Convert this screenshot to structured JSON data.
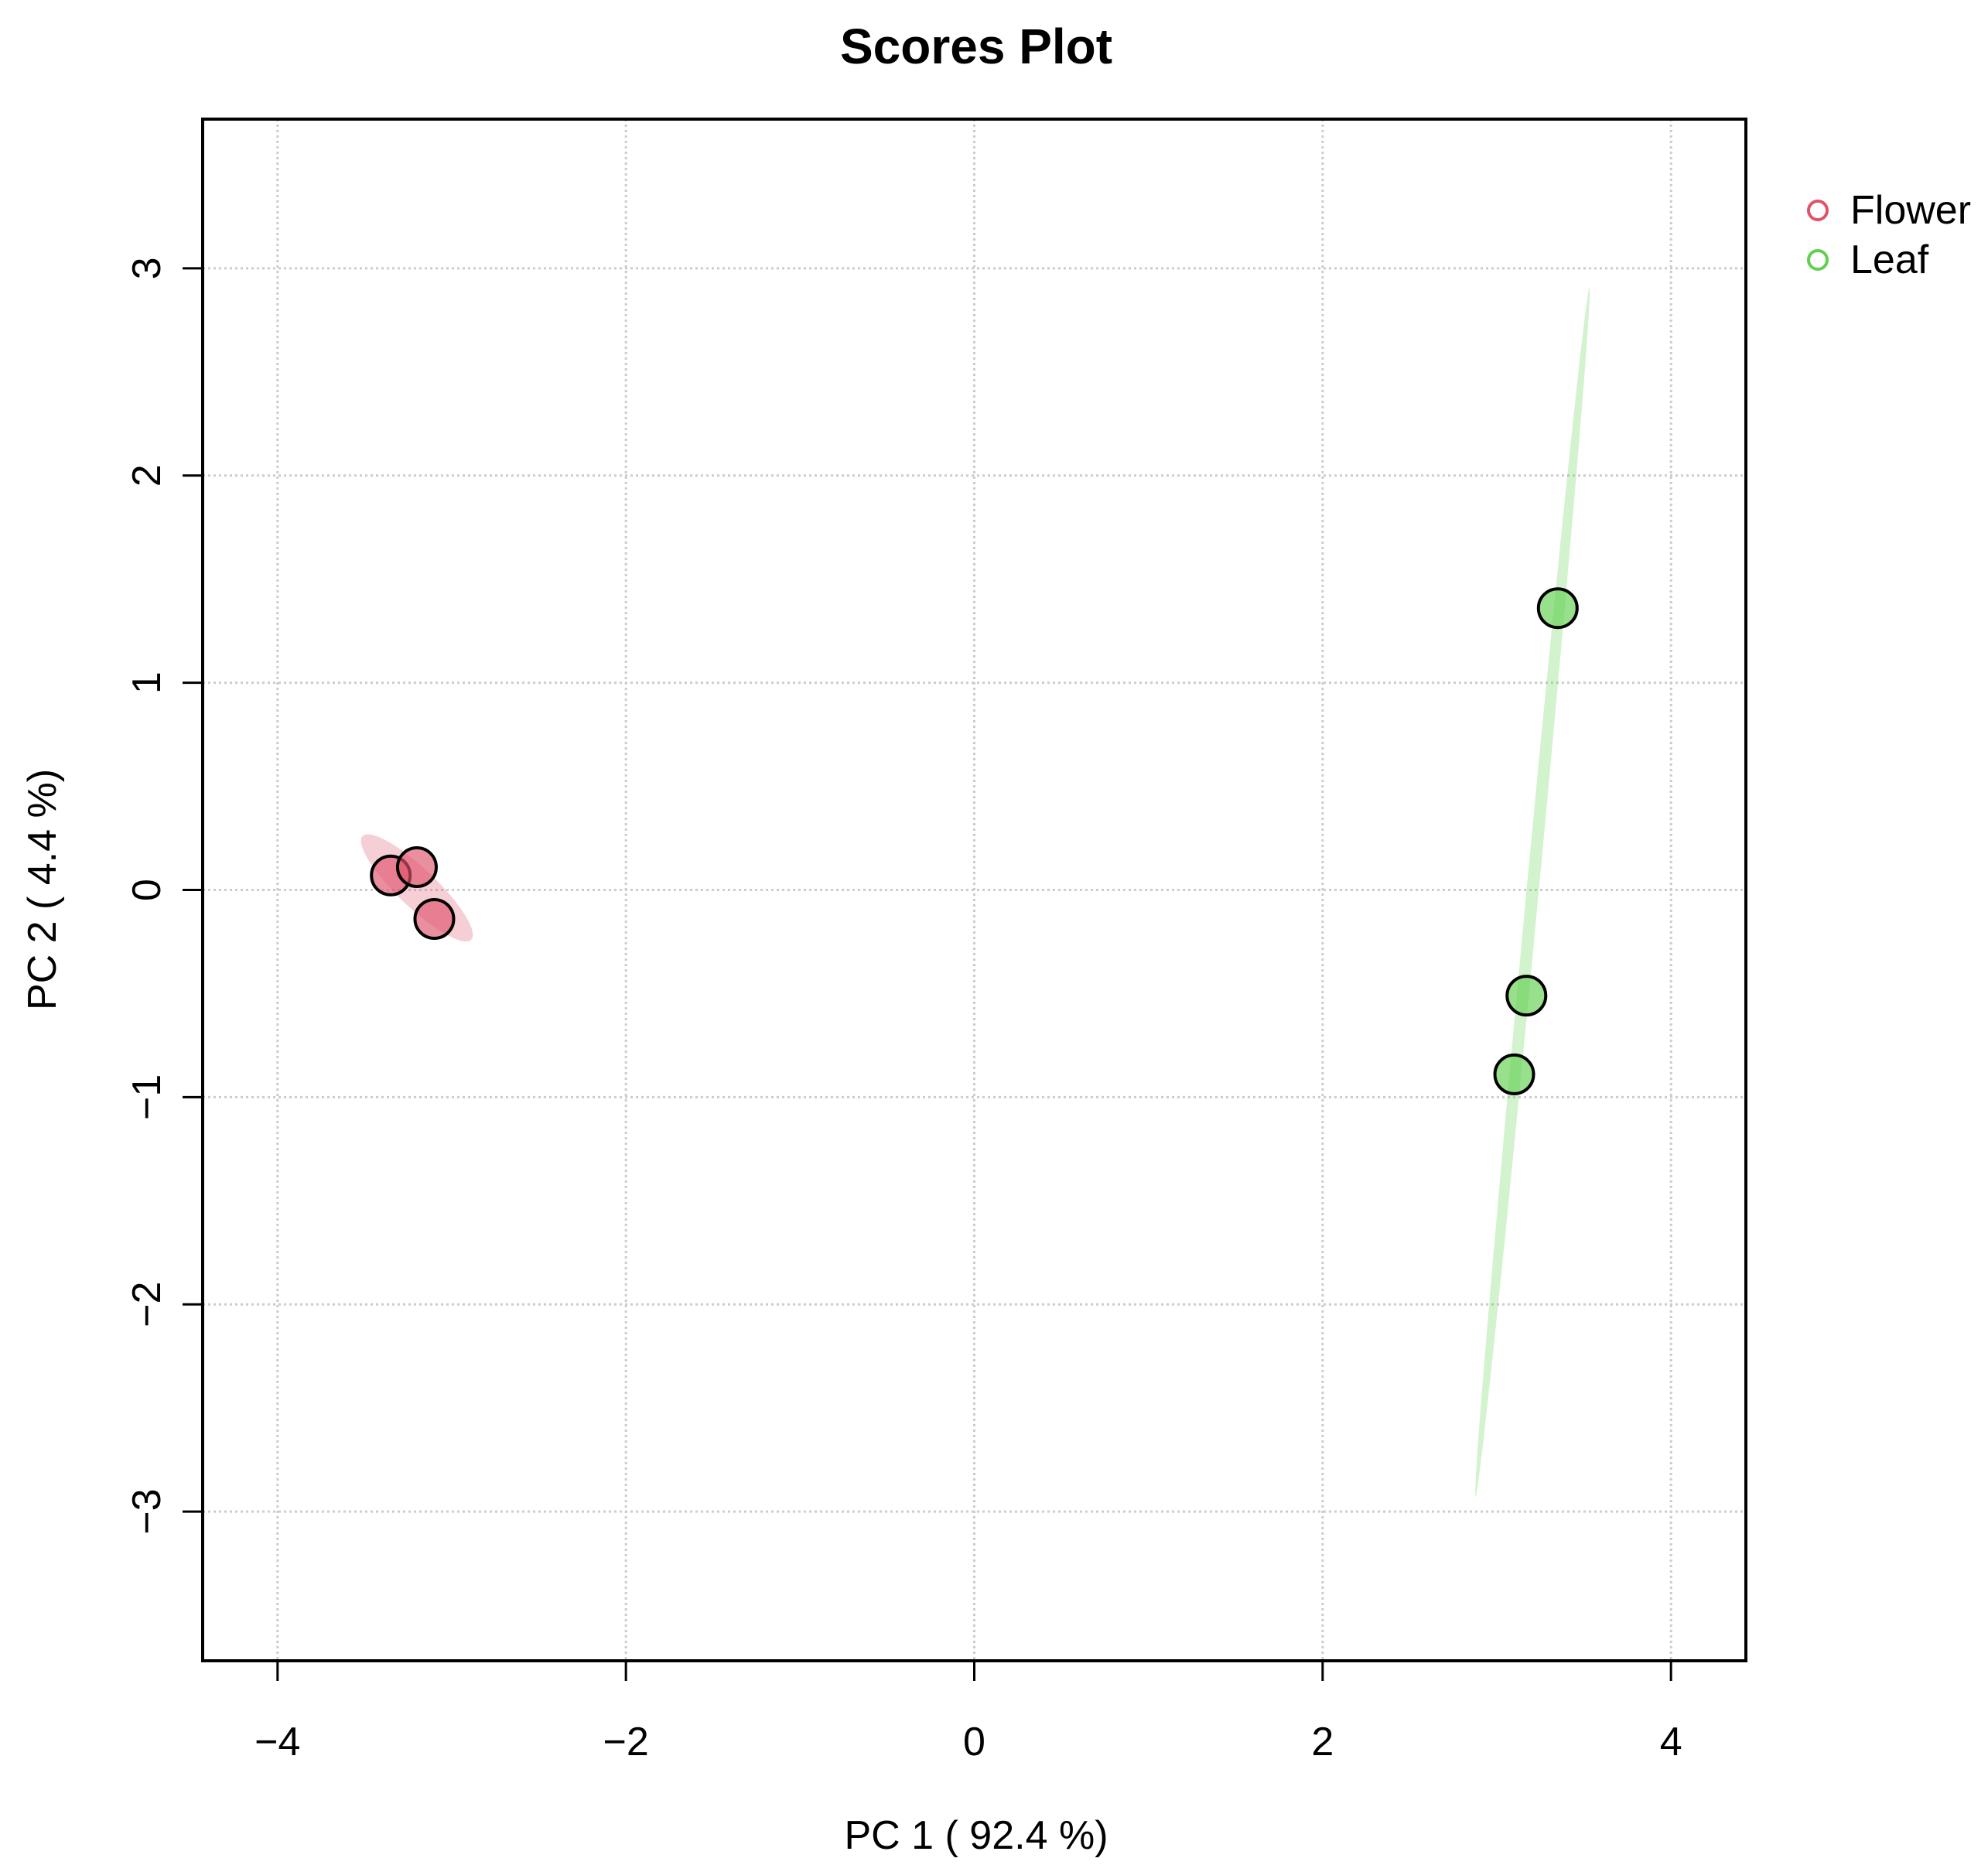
{
  "chart_data": {
    "type": "scatter",
    "title": "Scores Plot",
    "xlabel": "PC 1 ( 92.4 %)",
    "ylabel": "PC 2 ( 4.4 %)",
    "xlim": [
      -4.43,
      4.43
    ],
    "ylim": [
      -3.72,
      3.72
    ],
    "xticks": [
      -4,
      -2,
      0,
      2,
      4
    ],
    "yticks": [
      -3,
      -2,
      -1,
      0,
      1,
      2,
      3
    ],
    "xtick_labels": [
      "−4",
      "−2",
      "0",
      "2",
      "4"
    ],
    "ytick_labels": [
      "−3",
      "−2",
      "−1",
      "0",
      "1",
      "2",
      "3"
    ],
    "grid": true,
    "legend_position": "top-right-outside",
    "series": [
      {
        "name": "Flower",
        "color": "#DF536B",
        "points": [
          {
            "x": -3.35,
            "y": 0.07
          },
          {
            "x": -3.2,
            "y": 0.11
          },
          {
            "x": -3.1,
            "y": -0.14
          }
        ],
        "ellipse": {
          "cx": -3.2,
          "cy": 0.01,
          "rx": 0.4,
          "ry": 0.1,
          "angle_deg": -38
        }
      },
      {
        "name": "Leaf",
        "color": "#61D04F",
        "points": [
          {
            "x": 3.35,
            "y": 1.36
          },
          {
            "x": 3.17,
            "y": -0.51
          },
          {
            "x": 3.1,
            "y": -0.89
          }
        ],
        "ellipse": {
          "cx": 3.205,
          "cy": -0.01,
          "rx": 2.935,
          "ry": 0.035,
          "angle_deg": 83.6
        }
      }
    ]
  }
}
